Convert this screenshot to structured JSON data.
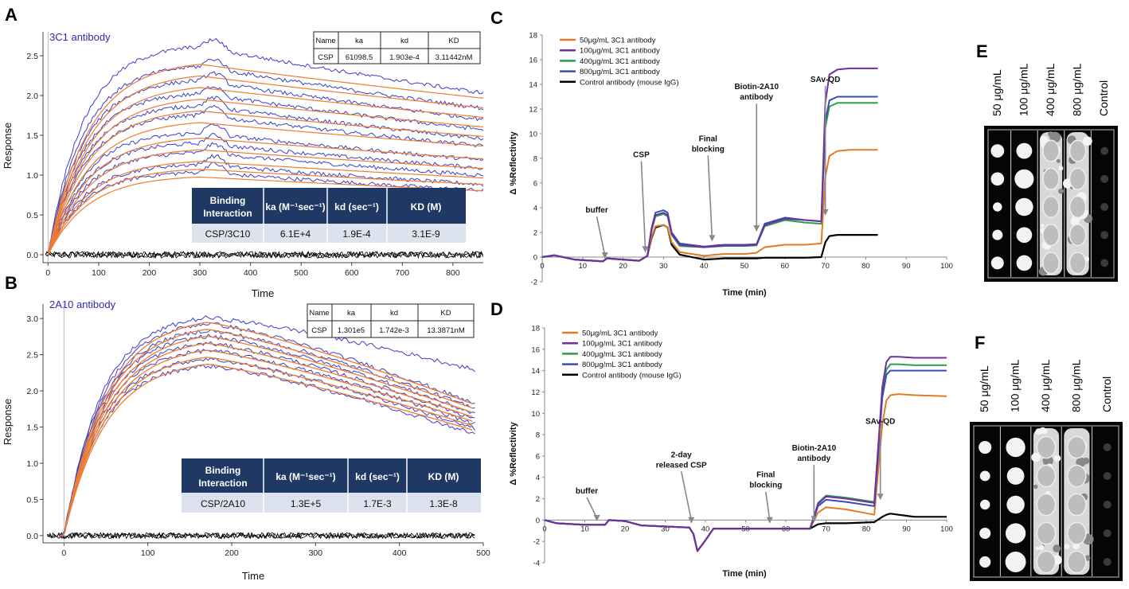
{
  "panel_labels": [
    "A",
    "B",
    "C",
    "D",
    "E",
    "F"
  ],
  "binding_tables": [
    {
      "header": [
        "Binding Interaction",
        "ka (M⁻¹sec⁻¹)",
        "kd (sec⁻¹)",
        "KD (M)"
      ],
      "row": [
        "CSP/3C10",
        "6.1E+4",
        "1.9E-4",
        "3.1E-9"
      ]
    },
    {
      "header": [
        "Binding Interaction",
        "ka (M⁻¹sec⁻¹)",
        "kd (sec⁻¹)",
        "KD (M)"
      ],
      "row": [
        "CSP/2A10",
        "1.3E+5",
        "1.7E-3",
        "1.3E-8"
      ]
    }
  ],
  "kinetic_tables": [
    {
      "header": [
        "Name",
        "ka",
        "kd",
        "KD"
      ],
      "row": [
        "CSP",
        "61098.5",
        "1.903e-4",
        "3.11442nM"
      ]
    },
    {
      "header": [
        "Name",
        "ka",
        "kd",
        "KD"
      ],
      "row": [
        "CSP",
        "1.301e5",
        "1.742e-3",
        "13.3871nM"
      ]
    }
  ],
  "images": [
    {
      "panel": "E",
      "columns": [
        "50 μg/mL",
        "100 μg/mL",
        "400 μg/mL",
        "800 μg/mL",
        "Control"
      ]
    },
    {
      "panel": "F",
      "columns": [
        "50 μg/mL",
        "100 μg/mL",
        "400 μg/mL",
        "800 μg/mL",
        "Control"
      ]
    }
  ],
  "colors": {
    "fit": "#ed7d31",
    "data": "#3d3dc8",
    "baseline": "#000000",
    "table_header": "#1f3864",
    "table_row": "#dce3ef",
    "series": [
      "#e07b24",
      "#7030a0",
      "#2ca050",
      "#3a4bb8",
      "#000000"
    ]
  },
  "chart_data": [
    {
      "panel": "A",
      "type": "line",
      "title": "3C1 antibody",
      "xlabel": "Time",
      "ylabel": "Response",
      "xlim": [
        -10,
        860
      ],
      "ylim": [
        -0.1,
        2.8
      ],
      "xticks": [
        0,
        100,
        200,
        300,
        400,
        500,
        600,
        700,
        800
      ],
      "yticks": [
        0.0,
        0.5,
        1.0,
        1.5,
        2.0,
        2.5
      ],
      "association_end": 300,
      "x_end": 860,
      "fit_plateaus": [
        1.0,
        1.1,
        1.2,
        1.35,
        1.5,
        1.7,
        1.85,
        2.0,
        2.15,
        2.3,
        2.45
      ],
      "data_plateaus": [
        1.05,
        1.15,
        1.3,
        1.42,
        1.55,
        1.78,
        1.9,
        2.05,
        2.22,
        2.4,
        2.65
      ],
      "baseline_level": 0.0
    },
    {
      "panel": "B",
      "type": "line",
      "title": "2A10 antibody",
      "xlabel": "Time",
      "ylabel": "Response",
      "xlim": [
        -25,
        500
      ],
      "ylim": [
        -0.1,
        3.2
      ],
      "xticks": [
        0,
        100,
        200,
        300,
        400,
        500
      ],
      "yticks": [
        0.0,
        0.5,
        1.0,
        1.5,
        2.0,
        2.5,
        3.0
      ],
      "association_end": 170,
      "x_end": 490,
      "fit_peaks": [
        2.45,
        2.55,
        2.65,
        2.75,
        2.85,
        2.95,
        3.05
      ],
      "data_peaks": [
        2.4,
        2.5,
        2.62,
        2.72,
        2.82,
        2.9,
        3.0,
        3.08
      ],
      "baseline_level": 0.0
    },
    {
      "panel": "C",
      "type": "line",
      "xlabel": "Time (min)",
      "ylabel": "Δ %Reflectivity",
      "xlim": [
        0,
        100
      ],
      "ylim": [
        -2,
        18
      ],
      "xticks": [
        0,
        10,
        20,
        30,
        40,
        50,
        60,
        70,
        80,
        90,
        100
      ],
      "yticks": [
        -2,
        0,
        2,
        4,
        6,
        8,
        10,
        12,
        14,
        16,
        18
      ],
      "legend": [
        "50μg/mL 3C1 antibody",
        "100μg/mL 3C1 antibody",
        "400μg/mL 3C1 antibody",
        "800μg/mL 3C1 antibody",
        "Control antibody (mouse IgG)"
      ],
      "series": [
        {
          "name": "50μg/mL 3C1 antibody",
          "x": [
            0,
            3,
            8,
            15,
            16,
            24,
            26,
            27,
            28,
            30,
            31,
            32,
            34,
            40,
            43,
            45,
            50,
            53,
            55,
            60,
            65,
            69,
            70,
            71,
            73,
            76,
            83
          ],
          "y": [
            0,
            0.15,
            -0.2,
            -0.35,
            -0.1,
            -0.3,
            0.1,
            1.6,
            2.5,
            2.6,
            2.4,
            1.2,
            0.4,
            0.1,
            0.2,
            0.25,
            0.25,
            0.35,
            0.8,
            1.0,
            1.0,
            1.1,
            6.5,
            8.2,
            8.6,
            8.7,
            8.7
          ]
        },
        {
          "name": "100μg/mL 3C1 antibody",
          "x": [
            0,
            3,
            8,
            15,
            16,
            24,
            26,
            27,
            28,
            30,
            31,
            32,
            34,
            40,
            43,
            45,
            50,
            53,
            55,
            60,
            65,
            69,
            70,
            71,
            73,
            76,
            83
          ],
          "y": [
            0,
            0.15,
            -0.2,
            -0.35,
            -0.1,
            -0.3,
            0.1,
            2.2,
            3.4,
            3.6,
            3.4,
            1.9,
            1.0,
            0.8,
            0.9,
            0.95,
            0.95,
            1.0,
            2.6,
            3.1,
            3.0,
            2.9,
            12.5,
            14.8,
            15.2,
            15.3,
            15.3
          ]
        },
        {
          "name": "400μg/mL 3C1 antibody",
          "x": [
            0,
            3,
            8,
            15,
            16,
            24,
            26,
            27,
            28,
            30,
            31,
            32,
            34,
            40,
            43,
            45,
            50,
            53,
            55,
            60,
            65,
            69,
            70,
            71,
            73,
            76,
            83
          ],
          "y": [
            0,
            0.15,
            -0.2,
            -0.35,
            -0.1,
            -0.3,
            0.1,
            2.1,
            3.3,
            3.5,
            3.3,
            1.8,
            0.9,
            0.8,
            0.85,
            0.9,
            0.9,
            0.95,
            2.5,
            3.0,
            2.8,
            2.7,
            10.5,
            12.2,
            12.5,
            12.5,
            12.5
          ]
        },
        {
          "name": "800μg/mL 3C1 antibody",
          "x": [
            0,
            3,
            8,
            15,
            16,
            24,
            26,
            27,
            28,
            30,
            31,
            32,
            34,
            40,
            43,
            45,
            50,
            53,
            55,
            60,
            65,
            69,
            70,
            71,
            73,
            76,
            83
          ],
          "y": [
            0,
            0.15,
            -0.2,
            -0.35,
            -0.1,
            -0.3,
            0.1,
            2.3,
            3.6,
            3.8,
            3.6,
            2.0,
            1.1,
            0.85,
            0.95,
            1.0,
            1.0,
            1.05,
            2.7,
            3.2,
            3.0,
            2.9,
            11.0,
            12.7,
            13.0,
            13.0,
            13.0
          ]
        },
        {
          "name": "Control antibody (mouse IgG)",
          "x": [
            0,
            3,
            8,
            15,
            16,
            24,
            26,
            27,
            28,
            30,
            31,
            32,
            34,
            40,
            43,
            45,
            50,
            53,
            55,
            60,
            65,
            69,
            70,
            71,
            73,
            76,
            83
          ],
          "y": [
            0,
            0.15,
            -0.2,
            -0.35,
            -0.1,
            -0.3,
            0.1,
            1.5,
            2.4,
            2.6,
            2.4,
            1.0,
            0.2,
            -0.2,
            -0.15,
            -0.1,
            -0.1,
            -0.1,
            -0.05,
            -0.05,
            -0.05,
            0,
            1.2,
            1.7,
            1.8,
            1.8,
            1.8
          ]
        }
      ],
      "annotations": [
        {
          "text": "buffer",
          "x": 15.5,
          "y": -0.2,
          "text_x": 13.5,
          "text_y": 3.6
        },
        {
          "text": "CSP",
          "x": 25.5,
          "y": 0.3,
          "text_x": 24.5,
          "text_y": 8.1
        },
        {
          "text": "Final blocking",
          "x": 42,
          "y": 1.2,
          "text_x": 41,
          "text_y": 9.4
        },
        {
          "text": "Biotin-2A10 antibody",
          "x": 53,
          "y": 2.0,
          "text_x": 53,
          "text_y": 13.6
        },
        {
          "text": "SAv-QD",
          "x": 70,
          "y": 3.3,
          "text_x": 70,
          "text_y": 14.2
        }
      ]
    },
    {
      "panel": "D",
      "type": "line",
      "xlabel": "Time (min)",
      "ylabel": "Δ %Reflectivity",
      "xlim": [
        0,
        100
      ],
      "ylim": [
        -4,
        18
      ],
      "xticks": [
        0,
        10,
        20,
        30,
        40,
        50,
        60,
        70,
        80,
        90,
        100
      ],
      "yticks": [
        -4,
        -2,
        0,
        2,
        4,
        6,
        8,
        10,
        12,
        14,
        16,
        18
      ],
      "legend": [
        "50μg/mL 3C1 antibody",
        "100μg/mL 3C1 antibody",
        "400μg/mL 3C1 antibody",
        "800μg/mL 3C1 antibody",
        "Control antibody (mouse IgG)"
      ],
      "series": [
        {
          "name": "50μg/mL 3C1 antibody",
          "x": [
            0,
            3,
            10,
            15,
            16,
            20,
            24,
            36,
            37,
            38,
            40,
            42,
            45,
            55,
            66,
            67,
            68,
            70,
            75,
            82,
            84,
            85,
            86,
            88,
            92,
            100
          ],
          "y": [
            0,
            -0.3,
            -0.45,
            -0.45,
            0,
            -0.1,
            -0.5,
            -0.7,
            -1.3,
            -2.9,
            -1.9,
            -0.8,
            -0.8,
            -0.8,
            -0.8,
            0,
            0.7,
            1.2,
            1.0,
            0.5,
            9.0,
            11.2,
            11.7,
            11.8,
            11.7,
            11.6
          ]
        },
        {
          "name": "100μg/mL 3C1 antibody",
          "x": [
            0,
            3,
            10,
            15,
            16,
            20,
            24,
            36,
            37,
            38,
            40,
            42,
            45,
            55,
            66,
            67,
            68,
            70,
            75,
            82,
            84,
            85,
            86,
            88,
            92,
            100
          ],
          "y": [
            0,
            -0.3,
            -0.45,
            -0.45,
            0,
            -0.1,
            -0.5,
            -0.7,
            -1.3,
            -2.9,
            -1.9,
            -0.8,
            -0.8,
            -0.8,
            -0.8,
            0.3,
            1.5,
            2.2,
            2.0,
            1.6,
            12.5,
            14.8,
            15.3,
            15.3,
            15.2,
            15.2
          ]
        },
        {
          "name": "400μg/mL 3C1 antibody",
          "x": [
            0,
            3,
            10,
            15,
            16,
            20,
            24,
            36,
            37,
            38,
            40,
            42,
            45,
            55,
            66,
            67,
            68,
            70,
            75,
            82,
            84,
            85,
            86,
            88,
            92,
            100
          ],
          "y": [
            0,
            -0.3,
            -0.45,
            -0.45,
            0,
            -0.1,
            -0.5,
            -0.7,
            -1.3,
            -2.9,
            -1.9,
            -0.8,
            -0.8,
            -0.8,
            -0.8,
            0.3,
            1.6,
            2.3,
            2.1,
            1.7,
            12.0,
            14.1,
            14.6,
            14.6,
            14.5,
            14.5
          ]
        },
        {
          "name": "800μg/mL 3C1 antibody",
          "x": [
            0,
            3,
            10,
            15,
            16,
            20,
            24,
            36,
            37,
            38,
            40,
            42,
            45,
            55,
            66,
            67,
            68,
            70,
            75,
            82,
            84,
            85,
            86,
            88,
            92,
            100
          ],
          "y": [
            0,
            -0.3,
            -0.45,
            -0.45,
            0,
            -0.1,
            -0.5,
            -0.7,
            -1.3,
            -2.9,
            -1.9,
            -0.8,
            -0.8,
            -0.8,
            -0.8,
            0.2,
            1.3,
            1.9,
            1.7,
            1.3,
            11.5,
            13.6,
            14.0,
            14.0,
            14.0,
            14.0
          ]
        },
        {
          "name": "Control antibody (mouse IgG)",
          "x": [
            0,
            3,
            10,
            15,
            16,
            20,
            24,
            36,
            37,
            38,
            40,
            42,
            45,
            55,
            66,
            67,
            68,
            70,
            75,
            82,
            84,
            85,
            86,
            88,
            92,
            100
          ],
          "y": [
            0,
            -0.3,
            -0.45,
            -0.45,
            0,
            -0.1,
            -0.5,
            -0.7,
            -1.3,
            -2.9,
            -1.9,
            -0.8,
            -0.8,
            -0.8,
            -0.8,
            -0.6,
            -0.4,
            -0.3,
            -0.3,
            -0.2,
            0.3,
            0.5,
            0.6,
            0.5,
            0.3,
            0.3
          ]
        }
      ],
      "annotations": [
        {
          "text": "buffer",
          "x": 13,
          "y": -0.2,
          "text_x": 10.5,
          "text_y": 2.5
        },
        {
          "text": "2-day released CSP",
          "x": 36.5,
          "y": -0.4,
          "text_x": 34,
          "text_y": 5.9
        },
        {
          "text": "Final blocking",
          "x": 56,
          "y": -0.4,
          "text_x": 55,
          "text_y": 4.0
        },
        {
          "text": "Biotin-2A10 antibody",
          "x": 67,
          "y": -0.3,
          "text_x": 67,
          "text_y": 6.5
        },
        {
          "text": "SAv-QD",
          "x": 83.5,
          "y": 1.8,
          "text_x": 83.5,
          "text_y": 9.0
        }
      ]
    }
  ]
}
